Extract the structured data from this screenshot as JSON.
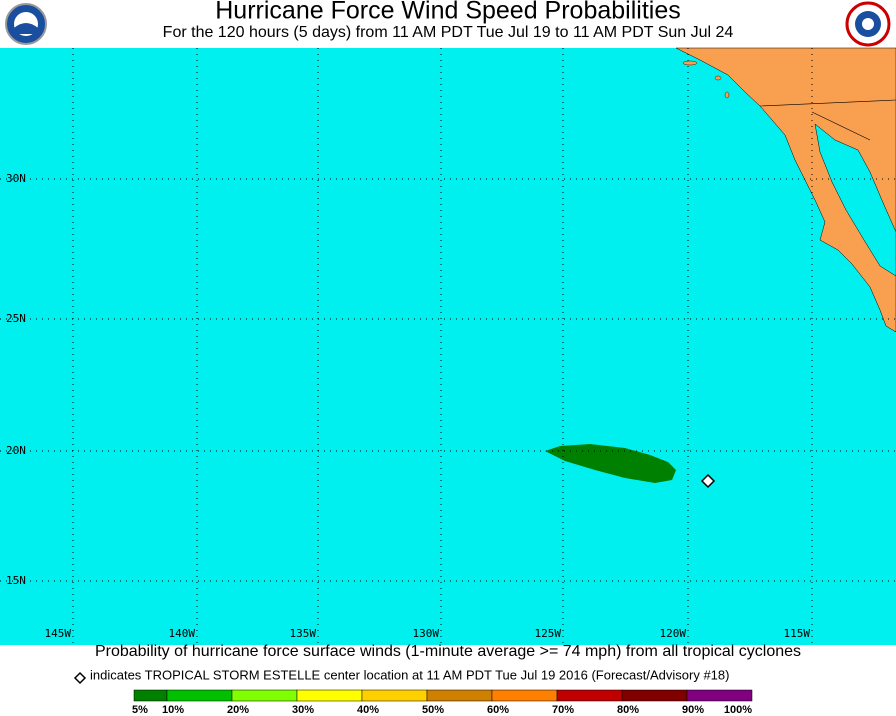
{
  "header": {
    "title": "Hurricane Force Wind Speed Probabilities",
    "subtitle": "For the 120 hours (5 days) from 11 AM PDT Tue Jul 19 to 11 AM PDT Sun Jul 24"
  },
  "map": {
    "latitude_labels": [
      "30N",
      "25N",
      "20N",
      "15N"
    ],
    "longitude_labels": [
      "145W",
      "140W",
      "135W",
      "130W",
      "125W",
      "120W",
      "115W"
    ]
  },
  "caption": {
    "line1": "Probability of hurricane force surface winds (1-minute average >= 74 mph) from all tropical cyclones",
    "line2": "indicates TROPICAL STORM ESTELLE center location at 11 AM PDT Tue Jul 19 2016 (Forecast/Advisory #18)"
  },
  "legend": {
    "labels": [
      "5%",
      "10%",
      "20%",
      "30%",
      "40%",
      "50%",
      "60%",
      "70%",
      "80%",
      "90%",
      "100%"
    ],
    "colors": [
      "#008000",
      "#00c000",
      "#80ff00",
      "#ffff00",
      "#ffd000",
      "#d08000",
      "#ff8000",
      "#c00000",
      "#800000",
      "#800080"
    ]
  }
}
